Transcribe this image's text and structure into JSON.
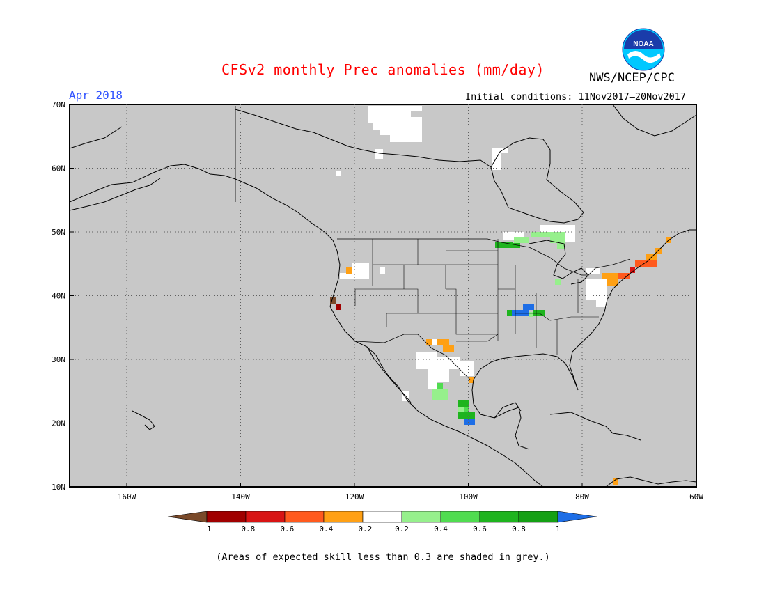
{
  "title": "CFSv2 monthly Prec anomalies (mm/day)",
  "organization": "NWS/NCEP/CPC",
  "logo_text": "NOAA",
  "valid_month": "Apr 2018",
  "initial_conditions": "Initial conditions: 11Nov2017–20Nov2017",
  "footnote": "(Areas of expected skill less than 0.3 are shaded in grey.)",
  "colors": {
    "title": "#ff0000",
    "month": "#3355ff",
    "land_grey": "#c8c8c8",
    "noaa_blue": "#1a3caa",
    "noaa_cyan": "#00c8ff"
  },
  "map": {
    "latitude_labels": [
      "70N",
      "60N",
      "50N",
      "40N",
      "30N",
      "20N",
      "10N"
    ],
    "longitude_labels": [
      "160W",
      "140W",
      "120W",
      "100W",
      "80W",
      "60W"
    ],
    "grid_style": "dotted"
  },
  "colorbar": {
    "bins": [
      {
        "range": "< -1",
        "color": "#7a4a2a"
      },
      {
        "range": "-1 to -0.8",
        "color": "#a00000"
      },
      {
        "range": "-0.8 to -0.6",
        "color": "#d81414"
      },
      {
        "range": "-0.6 to -0.4",
        "color": "#ff5a1e"
      },
      {
        "range": "-0.4 to -0.2",
        "color": "#ffa014"
      },
      {
        "range": "-0.2 to 0.2",
        "color": "#ffffff"
      },
      {
        "range": "0.2 to 0.4",
        "color": "#96f08c"
      },
      {
        "range": "0.4 to 0.6",
        "color": "#50dc50"
      },
      {
        "range": "0.6 to 0.8",
        "color": "#1eb41e"
      },
      {
        "range": "0.8 to 1",
        "color": "#14a014"
      },
      {
        "range": "> 1",
        "color": "#1e6ee6"
      }
    ],
    "tick_labels": [
      "−1",
      "−0.8",
      "−0.6",
      "−0.4",
      "−0.2",
      "0.2",
      "0.4",
      "0.6",
      "0.8",
      "1"
    ]
  },
  "anomaly_patches": [
    {
      "region": "northern Canada",
      "value": 0.0
    },
    {
      "region": "Hudson Bay coast",
      "value": 0.0
    },
    {
      "region": "Oregon",
      "value": -0.3
    },
    {
      "region": "northern California coast",
      "value": -1.1
    },
    {
      "region": "Lake Superior / Minnesota",
      "value": 0.5
    },
    {
      "region": "Missouri / Illinois",
      "value": 1.1
    },
    {
      "region": "Texas / Mexico border",
      "value": -0.3
    },
    {
      "region": "Northern Mexico",
      "value": 0.0
    },
    {
      "region": "Central Mexico",
      "value": 0.7
    },
    {
      "region": "New England",
      "value": -0.6
    },
    {
      "region": "Mid-Atlantic",
      "value": 0.0
    },
    {
      "region": "Venezuela coast",
      "value": -0.3
    }
  ]
}
